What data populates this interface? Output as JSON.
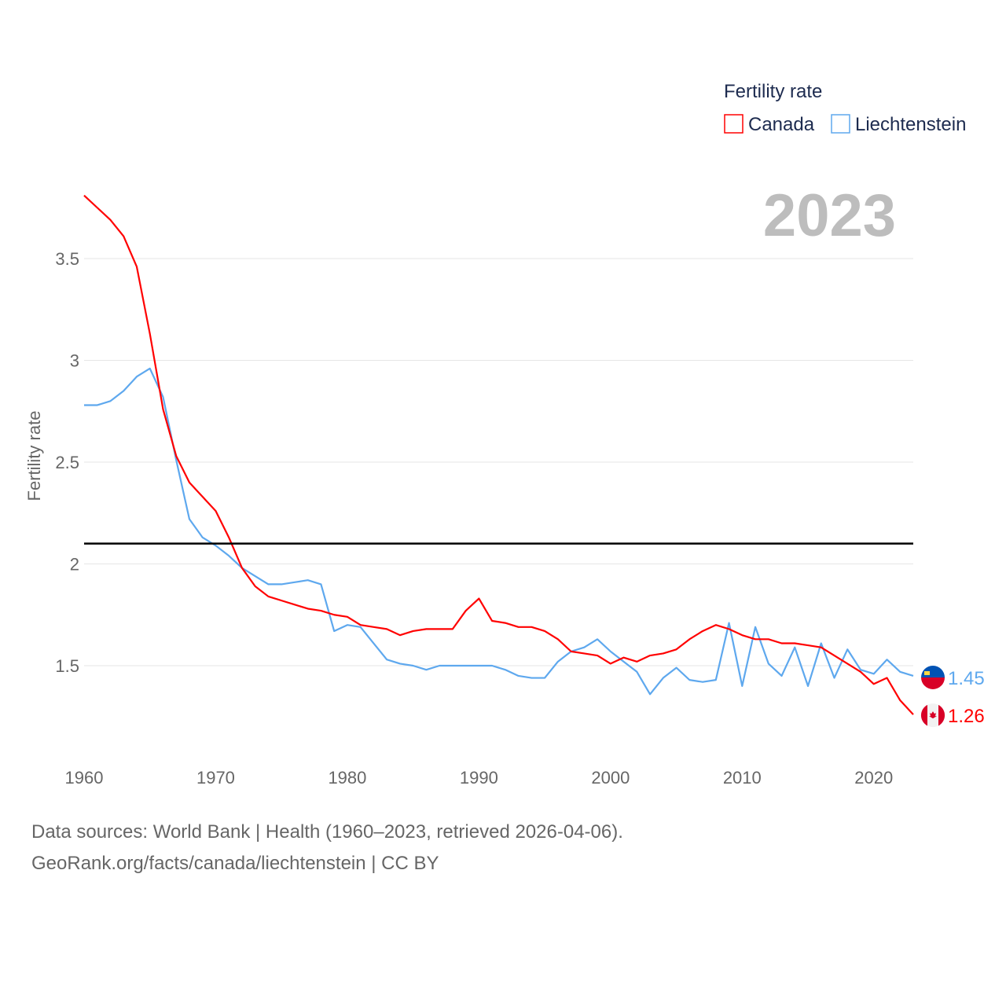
{
  "chart_data": {
    "type": "line",
    "title": "Fertility rate",
    "ylabel": "Fertility rate",
    "xlabel": "",
    "ylim": [
      1.1,
      3.9
    ],
    "xlim": [
      1960,
      2023
    ],
    "yticks": [
      1.5,
      2,
      2.5,
      3,
      3.5
    ],
    "ytick_labels": [
      "1.5",
      "2",
      "2.5",
      "3",
      "3.5"
    ],
    "xticks": [
      1960,
      1970,
      1980,
      1990,
      2000,
      2010,
      2020
    ],
    "xtick_labels": [
      "1960",
      "1970",
      "1980",
      "1990",
      "2000",
      "2010",
      "2020"
    ],
    "grid": true,
    "legend_placement": "top-right",
    "current_year": "2023",
    "reference_line": {
      "value": 2.1,
      "color": "#000000"
    },
    "x": [
      1960,
      1961,
      1962,
      1963,
      1964,
      1965,
      1966,
      1967,
      1968,
      1969,
      1970,
      1971,
      1972,
      1973,
      1974,
      1975,
      1976,
      1977,
      1978,
      1979,
      1980,
      1981,
      1982,
      1983,
      1984,
      1985,
      1986,
      1987,
      1988,
      1989,
      1990,
      1991,
      1992,
      1993,
      1994,
      1995,
      1996,
      1997,
      1998,
      1999,
      2000,
      2001,
      2002,
      2003,
      2004,
      2005,
      2006,
      2007,
      2008,
      2009,
      2010,
      2011,
      2012,
      2013,
      2014,
      2015,
      2016,
      2017,
      2018,
      2019,
      2020,
      2021,
      2022,
      2023
    ],
    "series": [
      {
        "name": "Canada",
        "color": "#ff0000",
        "end_label": "1.26",
        "flag": "canada-flag",
        "values": [
          3.81,
          3.75,
          3.69,
          3.61,
          3.46,
          3.13,
          2.76,
          2.53,
          2.4,
          2.33,
          2.26,
          2.13,
          1.98,
          1.89,
          1.84,
          1.82,
          1.8,
          1.78,
          1.77,
          1.75,
          1.74,
          1.7,
          1.69,
          1.68,
          1.65,
          1.67,
          1.68,
          1.68,
          1.68,
          1.77,
          1.83,
          1.72,
          1.71,
          1.69,
          1.69,
          1.67,
          1.63,
          1.57,
          1.56,
          1.55,
          1.51,
          1.54,
          1.52,
          1.55,
          1.56,
          1.58,
          1.63,
          1.67,
          1.7,
          1.68,
          1.65,
          1.63,
          1.63,
          1.61,
          1.61,
          1.6,
          1.59,
          1.55,
          1.51,
          1.47,
          1.41,
          1.44,
          1.33,
          1.26
        ]
      },
      {
        "name": "Liechtenstein",
        "color": "#5ea8ee",
        "end_label": "1.45",
        "flag": "liechtenstein-flag",
        "values": [
          2.78,
          2.78,
          2.8,
          2.85,
          2.92,
          2.96,
          2.82,
          2.51,
          2.22,
          2.13,
          2.09,
          2.04,
          1.98,
          1.94,
          1.9,
          1.9,
          1.91,
          1.92,
          1.9,
          1.67,
          1.7,
          1.69,
          1.61,
          1.53,
          1.51,
          1.5,
          1.48,
          1.5,
          1.5,
          1.5,
          1.5,
          1.5,
          1.48,
          1.45,
          1.44,
          1.44,
          1.52,
          1.57,
          1.59,
          1.63,
          1.57,
          1.52,
          1.47,
          1.36,
          1.44,
          1.49,
          1.43,
          1.42,
          1.43,
          1.71,
          1.4,
          1.69,
          1.51,
          1.45,
          1.59,
          1.4,
          1.61,
          1.44,
          1.58,
          1.48,
          1.46,
          1.53,
          1.47,
          1.45
        ]
      }
    ]
  },
  "footer": {
    "line1": "Data sources: World Bank | Health (1960–2023, retrieved 2026-04-06).",
    "line2": "GeoRank.org/facts/canada/liechtenstein | CC BY"
  }
}
